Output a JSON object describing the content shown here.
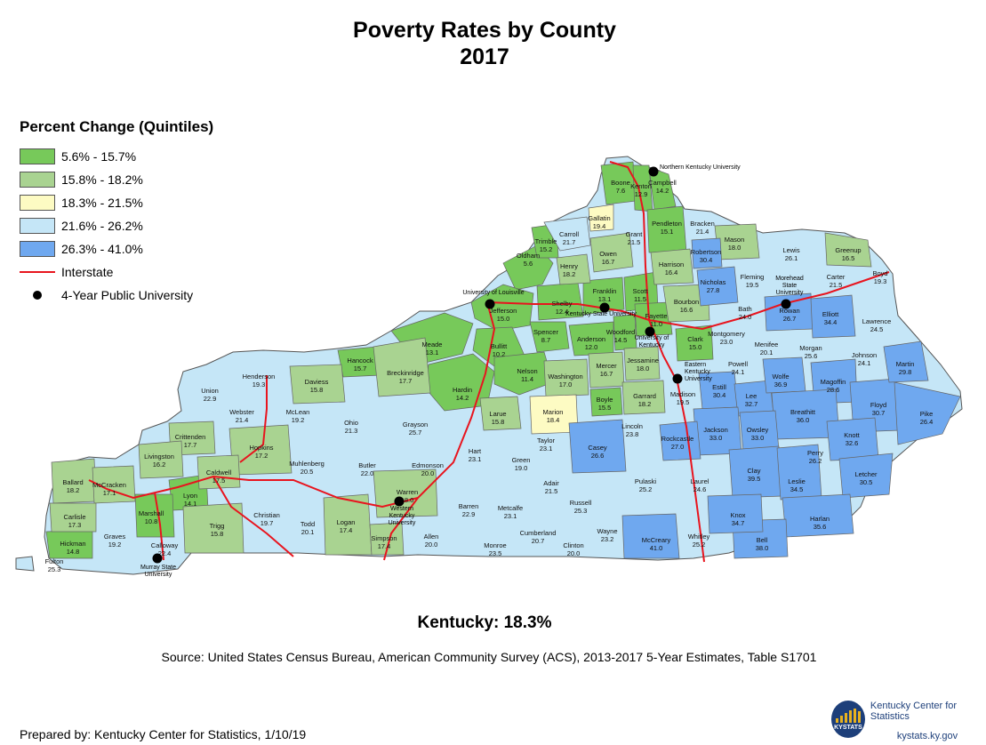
{
  "title": "Poverty Rates by County",
  "subtitle": "2017",
  "legend": {
    "title": "Percent Change (Quintiles)",
    "items": [
      {
        "label": "5.6% - 15.7%",
        "color": "#77c95a"
      },
      {
        "label": "15.8% - 18.2%",
        "color": "#a9d391"
      },
      {
        "label": "18.3% - 21.5%",
        "color": "#fdfbc3"
      },
      {
        "label": "21.6% - 26.2%",
        "color": "#c5e6f7"
      },
      {
        "label": "26.3% - 41.0%",
        "color": "#6fa8ef"
      }
    ],
    "interstate_label": "Interstate",
    "university_label": "4-Year Public University"
  },
  "counties": [
    {
      "name": "Boone",
      "value": "7.6"
    },
    {
      "name": "Kenton",
      "value": "12.9"
    },
    {
      "name": "Campbell",
      "value": "14.2"
    },
    {
      "name": "Gallatin",
      "value": "19.4"
    },
    {
      "name": "Carroll",
      "value": "21.7"
    },
    {
      "name": "Grant",
      "value": "21.5"
    },
    {
      "name": "Pendleton",
      "value": "15.1"
    },
    {
      "name": "Bracken",
      "value": "21.4"
    },
    {
      "name": "Mason",
      "value": "18.0"
    },
    {
      "name": "Lewis",
      "value": "26.1"
    },
    {
      "name": "Greenup",
      "value": "16.5"
    },
    {
      "name": "Boyd",
      "value": "19.3"
    },
    {
      "name": "Trimble",
      "value": "15.2"
    },
    {
      "name": "Owen",
      "value": "16.7"
    },
    {
      "name": "Robertson",
      "value": "30.4"
    },
    {
      "name": "Henry",
      "value": "18.2"
    },
    {
      "name": "Harrison",
      "value": "16.4"
    },
    {
      "name": "Fleming",
      "value": "19.5"
    },
    {
      "name": "Carter",
      "value": "21.5"
    },
    {
      "name": "Oldham",
      "value": "5.6"
    },
    {
      "name": "Franklin",
      "value": "13.1"
    },
    {
      "name": "Scott",
      "value": "11.5"
    },
    {
      "name": "Nicholas",
      "value": "27.8"
    },
    {
      "name": "Rowan",
      "value": "26.7"
    },
    {
      "name": "Jefferson",
      "value": "15.0"
    },
    {
      "name": "Shelby",
      "value": "12.4"
    },
    {
      "name": "Bourbon",
      "value": "16.6"
    },
    {
      "name": "Bath",
      "value": "24.0"
    },
    {
      "name": "Elliott",
      "value": "34.4"
    },
    {
      "name": "Lawrence",
      "value": "24.5"
    },
    {
      "name": "Fayette",
      "value": "11.0"
    },
    {
      "name": "Spencer",
      "value": "8.7"
    },
    {
      "name": "Anderson",
      "value": "12.0"
    },
    {
      "name": "Woodford",
      "value": "14.5"
    },
    {
      "name": "Clark",
      "value": "15.0"
    },
    {
      "name": "Montgomery",
      "value": "23.0"
    },
    {
      "name": "Menifee",
      "value": "20.1"
    },
    {
      "name": "Morgan",
      "value": "25.6"
    },
    {
      "name": "Johnson",
      "value": "24.1"
    },
    {
      "name": "Martin",
      "value": "29.8"
    },
    {
      "name": "Meade",
      "value": "13.1"
    },
    {
      "name": "Bullitt",
      "value": "10.2"
    },
    {
      "name": "Hancock",
      "value": "15.7"
    },
    {
      "name": "Breckinridge",
      "value": "17.7"
    },
    {
      "name": "Nelson",
      "value": "11.4"
    },
    {
      "name": "Mercer",
      "value": "16.7"
    },
    {
      "name": "Jessamine",
      "value": "18.0"
    },
    {
      "name": "Powell",
      "value": "24.1"
    },
    {
      "name": "Wolfe",
      "value": "36.9"
    },
    {
      "name": "Magoffin",
      "value": "28.6"
    },
    {
      "name": "Floyd",
      "value": "30.7"
    },
    {
      "name": "Pike",
      "value": "26.4"
    },
    {
      "name": "Henderson",
      "value": "19.3"
    },
    {
      "name": "Daviess",
      "value": "15.8"
    },
    {
      "name": "Union",
      "value": "22.9"
    },
    {
      "name": "Hardin",
      "value": "14.2"
    },
    {
      "name": "Washington",
      "value": "17.0"
    },
    {
      "name": "Boyle",
      "value": "15.5"
    },
    {
      "name": "Garrard",
      "value": "18.2"
    },
    {
      "name": "Madison",
      "value": "19.5"
    },
    {
      "name": "Estill",
      "value": "30.4"
    },
    {
      "name": "Lee",
      "value": "32.7"
    },
    {
      "name": "Breathitt",
      "value": "36.0"
    },
    {
      "name": "Knott",
      "value": "32.6"
    },
    {
      "name": "McLean",
      "value": "19.2"
    },
    {
      "name": "Webster",
      "value": "21.4"
    },
    {
      "name": "Ohio",
      "value": "21.3"
    },
    {
      "name": "Grayson",
      "value": "25.7"
    },
    {
      "name": "Larue",
      "value": "15.8"
    },
    {
      "name": "Marion",
      "value": "18.4"
    },
    {
      "name": "Lincoln",
      "value": "23.8"
    },
    {
      "name": "Jackson",
      "value": "33.0"
    },
    {
      "name": "Owsley",
      "value": "33.0"
    },
    {
      "name": "Perry",
      "value": "26.2"
    },
    {
      "name": "Letcher",
      "value": "30.5"
    },
    {
      "name": "Crittenden",
      "value": "17.7"
    },
    {
      "name": "Hopkins",
      "value": "17.2"
    },
    {
      "name": "Livingston",
      "value": "16.2"
    },
    {
      "name": "Caldwell",
      "value": "17.5"
    },
    {
      "name": "Muhlenberg",
      "value": "20.5"
    },
    {
      "name": "Butler",
      "value": "22.0"
    },
    {
      "name": "Edmonson",
      "value": "20.0"
    },
    {
      "name": "Hart",
      "value": "23.1"
    },
    {
      "name": "Green",
      "value": "19.0"
    },
    {
      "name": "Taylor",
      "value": "23.1"
    },
    {
      "name": "Casey",
      "value": "26.6"
    },
    {
      "name": "Rockcastle",
      "value": "27.0"
    },
    {
      "name": "Pulaski",
      "value": "25.2"
    },
    {
      "name": "Laurel",
      "value": "24.6"
    },
    {
      "name": "Clay",
      "value": "39.5"
    },
    {
      "name": "Leslie",
      "value": "34.5"
    },
    {
      "name": "Ballard",
      "value": "18.2"
    },
    {
      "name": "McCracken",
      "value": "17.1"
    },
    {
      "name": "Lyon",
      "value": "14.1"
    },
    {
      "name": "Marshall",
      "value": "10.8"
    },
    {
      "name": "Christian",
      "value": "19.7"
    },
    {
      "name": "Todd",
      "value": "20.1"
    },
    {
      "name": "Logan",
      "value": "17.4"
    },
    {
      "name": "Warren",
      "value": "18.0"
    },
    {
      "name": "Barren",
      "value": "22.9"
    },
    {
      "name": "Metcalfe",
      "value": "23.1"
    },
    {
      "name": "Adair",
      "value": "21.5"
    },
    {
      "name": "Russell",
      "value": "25.3"
    },
    {
      "name": "Wayne",
      "value": "23.2"
    },
    {
      "name": "Knox",
      "value": "34.7"
    },
    {
      "name": "Harlan",
      "value": "35.6"
    },
    {
      "name": "Carlisle",
      "value": "17.3"
    },
    {
      "name": "Trigg",
      "value": "15.8"
    },
    {
      "name": "Hickman",
      "value": "14.8"
    },
    {
      "name": "Graves",
      "value": "19.2"
    },
    {
      "name": "Calloway",
      "value": "22.4"
    },
    {
      "name": "Simpson",
      "value": "17.4"
    },
    {
      "name": "Allen",
      "value": "20.0"
    },
    {
      "name": "Monroe",
      "value": "23.5"
    },
    {
      "name": "Cumberland",
      "value": "20.7"
    },
    {
      "name": "Clinton",
      "value": "20.0"
    },
    {
      "name": "McCreary",
      "value": "41.0"
    },
    {
      "name": "Whitley",
      "value": "25.2"
    },
    {
      "name": "Bell",
      "value": "38.0"
    },
    {
      "name": "Fulton",
      "value": "25.3"
    }
  ],
  "universities": [
    {
      "name": "Northern Kentucky University"
    },
    {
      "name": "University of Louisville"
    },
    {
      "name": "Kentucky State University"
    },
    {
      "name": "University of Kentucky"
    },
    {
      "name": "Morehead State University"
    },
    {
      "name": "Eastern Kentucky University"
    },
    {
      "name": "Western Kentucky University"
    },
    {
      "name": "Murray State University"
    }
  ],
  "state_total": "Kentucky:  18.3%",
  "source": "Source:  United States Census Bureau, American Community Survey (ACS), 2013-2017 5-Year Estimates, Table S1701",
  "prepared_by": "Prepared by:  Kentucky Center for Statistics, 1/10/19",
  "logo": {
    "name": "Kentucky Center for Statistics",
    "url": "kystats.ky.gov",
    "abbr": "KYSTATS"
  }
}
